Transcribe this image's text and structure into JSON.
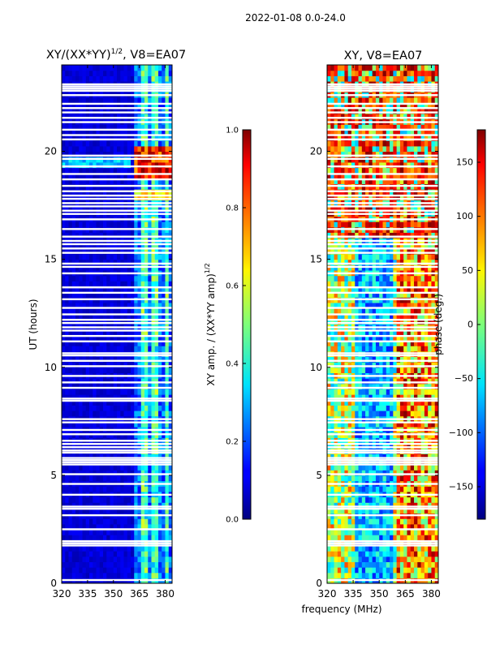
{
  "suptitle": "2022-01-08 0.0-24.0",
  "chart_data": [
    {
      "type": "heatmap",
      "title_prefix": "XY/(XX*YY)",
      "title_exponent": "1/2",
      "title_suffix": ", V8=EA07",
      "xlabel": "",
      "ylabel": "UT (hours)",
      "x_ticks": [
        "320",
        "335",
        "350",
        "365",
        "380"
      ],
      "x_tick_values": [
        320,
        335,
        350,
        365,
        380
      ],
      "y_ticks": [
        "0",
        "5",
        "10",
        "15",
        "20"
      ],
      "y_tick_values": [
        0,
        5,
        10,
        15,
        20
      ],
      "xlim": [
        320,
        384
      ],
      "ylim": [
        0,
        24
      ],
      "colorbar": {
        "label_prefix": "XY amp. / (XX*YY amp)",
        "label_exponent": "1/2",
        "range": [
          0.0,
          1.0
        ],
        "ticks": [
          "0.0",
          "0.2",
          "0.4",
          "0.6",
          "0.8",
          "1.0"
        ],
        "tick_values": [
          0.0,
          0.2,
          0.4,
          0.6,
          0.8,
          1.0
        ],
        "colormap": "jet"
      },
      "features": "Mostly low amplitude (dark blue); elevated amplitude in 361-382 MHz channels with peak near 19-20 h UT"
    },
    {
      "type": "heatmap",
      "title": "XY, V8=EA07",
      "xlabel": "frequency (MHz)",
      "ylabel": "",
      "x_ticks": [
        "320",
        "335",
        "350",
        "365",
        "380"
      ],
      "x_tick_values": [
        320,
        335,
        350,
        365,
        380
      ],
      "y_ticks": [
        "0",
        "5",
        "10",
        "15",
        "20"
      ],
      "y_tick_values": [
        0,
        5,
        10,
        15,
        20
      ],
      "xlim": [
        320,
        384
      ],
      "ylim": [
        0,
        24
      ],
      "colorbar": {
        "label": "phase (deg.)",
        "range": [
          -180,
          180
        ],
        "ticks": [
          "−150",
          "−100",
          "−50",
          "0",
          "50",
          "100",
          "150"
        ],
        "tick_values": [
          -150,
          -100,
          -50,
          0,
          50,
          100,
          150
        ],
        "colormap": "jet"
      },
      "features": "Phase varies widely; blue (negative) regions 335-360 MHz below 15 h, red/orange above 16 h"
    }
  ],
  "flagged_rows_hours": [
    0.15,
    1.75,
    1.85,
    1.95,
    2.5,
    3.15,
    3.45,
    3.55,
    4.1,
    4.6,
    5.05,
    5.5,
    5.6,
    5.7,
    5.8,
    6.05,
    6.15,
    6.3,
    6.45,
    6.6,
    6.9,
    7.1,
    7.45,
    7.6,
    8.45,
    8.55,
    9.05,
    9.3,
    9.6,
    10.05,
    10.3,
    10.55,
    10.65,
    11.2,
    11.45,
    11.7,
    11.85,
    12.05,
    12.2,
    12.45,
    12.75,
    13.15,
    13.45,
    13.7,
    14.35,
    14.65,
    14.8,
    15.3,
    15.5,
    15.7,
    15.85,
    16.05,
    16.4,
    16.85,
    17.1,
    17.25,
    17.45,
    17.6,
    17.8,
    17.95,
    18.15,
    18.4,
    18.7,
    18.95,
    19.3,
    19.65,
    19.8,
    20.55,
    20.75,
    21.0,
    21.35,
    21.55,
    21.8,
    22.0,
    22.2,
    22.6,
    22.8,
    22.9,
    23.0,
    23.1
  ]
}
